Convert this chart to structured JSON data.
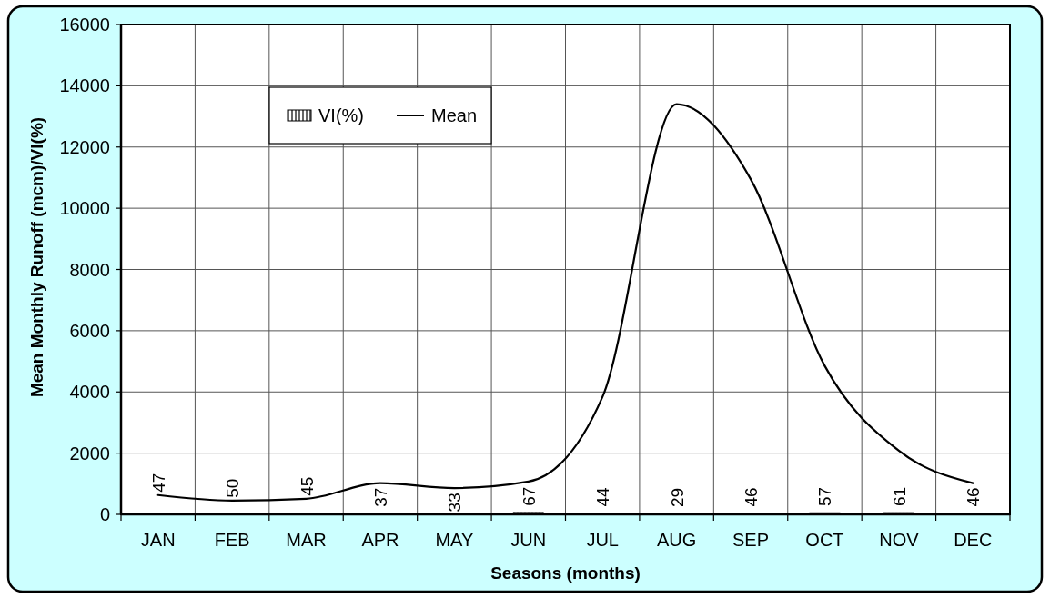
{
  "chart_data": {
    "type": "bar",
    "xlabel": "Seasons (months)",
    "ylabel": "Mean Monthly Runoff (mcm)/VI(%)",
    "categories": [
      "JAN",
      "FEB",
      "MAR",
      "APR",
      "MAY",
      "JUN",
      "JUL",
      "AUG",
      "SEP",
      "OCT",
      "NOV",
      "DEC"
    ],
    "series": [
      {
        "name": "VI(%)",
        "color": "#000000",
        "values": [
          47,
          50,
          45,
          37,
          33,
          67,
          44,
          29,
          46,
          57,
          61,
          46
        ],
        "value_labels": [
          "47",
          "50",
          "45",
          "37",
          "33",
          "67",
          "44",
          "29",
          "46",
          "57",
          "61",
          "46"
        ]
      },
      {
        "name": "Mean",
        "type": "line",
        "color": "#000000",
        "values": [
          630,
          450,
          510,
          1020,
          860,
          1070,
          3840,
          13400,
          10950,
          4850,
          2080,
          1020
        ]
      }
    ],
    "ylim": [
      0,
      16000
    ],
    "yticks": [
      0,
      2000,
      4000,
      6000,
      8000,
      10000,
      12000,
      14000,
      16000
    ],
    "grid": true,
    "legend": "top left"
  }
}
